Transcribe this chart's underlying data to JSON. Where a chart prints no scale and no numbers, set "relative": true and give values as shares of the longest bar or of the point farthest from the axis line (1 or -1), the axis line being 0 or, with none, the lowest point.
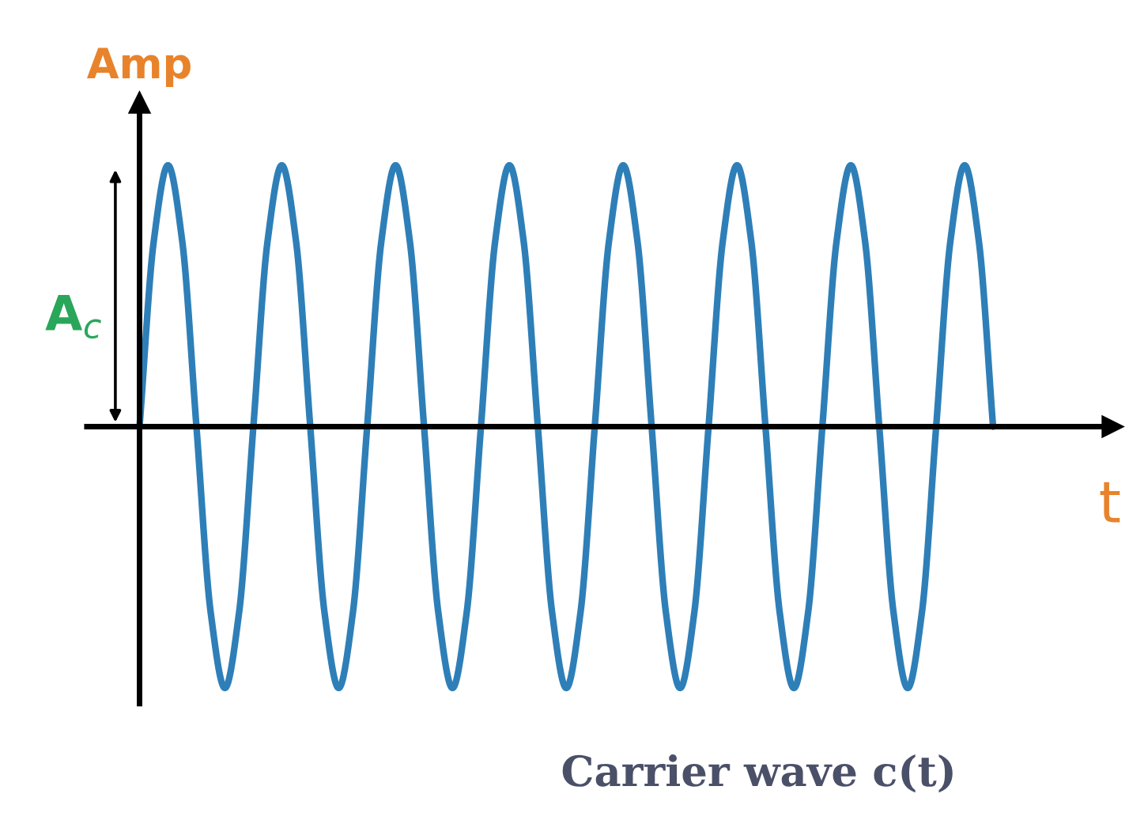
{
  "chart_data": {
    "type": "line",
    "relative": true,
    "title": "Carrier wave c(t)",
    "xlabel": "t",
    "ylabel": "Amp",
    "annotations": [
      "A$_{c}$"
    ],
    "categories": [
      null,
      null,
      null,
      null,
      null,
      null,
      null,
      null,
      null,
      null,
      null,
      null,
      null,
      null,
      null,
      null,
      null,
      null,
      null,
      null,
      null,
      null,
      null,
      null,
      null,
      null,
      null,
      null,
      null,
      null,
      null,
      null,
      null,
      null,
      null,
      null,
      null,
      null,
      null,
      null,
      null,
      null,
      null,
      null,
      null,
      null,
      null,
      null,
      null,
      null,
      null,
      null,
      null,
      null,
      null,
      null,
      null,
      null,
      null,
      null,
      null
    ],
    "series": [
      {
        "color": "#2e7fb8",
        "values": [
          0,
          0.71,
          1,
          0.71,
          0,
          -0.71,
          -1,
          -0.71,
          0,
          0.71,
          1,
          0.71,
          0,
          -0.71,
          -1,
          -0.71,
          0,
          0.71,
          1,
          0.71,
          0,
          -0.71,
          -1,
          -0.71,
          0,
          0.71,
          1,
          0.71,
          0,
          -0.71,
          -1,
          -0.71,
          0,
          0.71,
          1,
          0.71,
          0,
          -0.71,
          -1,
          -0.71,
          0,
          0.71,
          1,
          0.71,
          0,
          -0.71,
          -1,
          -0.71,
          0,
          0.71,
          1,
          0.71,
          0,
          -0.71,
          -1,
          -0.71,
          0,
          0.71,
          1,
          0.71,
          0
        ]
      }
    ]
  }
}
